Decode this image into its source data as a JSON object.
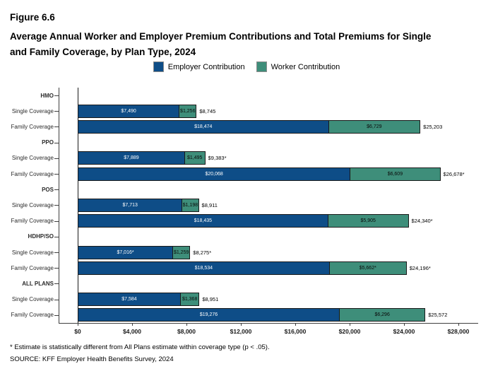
{
  "figure_label": "Figure 6.6",
  "title_lines": [
    "Average Annual Worker and Employer Premium Contributions and Total Premiums for Single",
    "and Family Coverage, by Plan Type, 2024"
  ],
  "legend": {
    "employer": {
      "label": "Employer Contribution",
      "color": "#0E4D87"
    },
    "worker": {
      "label": "Worker Contribution",
      "color": "#3E8E7A"
    }
  },
  "footnote": "* Estimate is statistically different from All Plans estimate within coverage type (p < .05).",
  "source": "SOURCE: KFF Employer Health Benefits Survey, 2024",
  "chart_data": {
    "type": "bar",
    "orientation": "horizontal",
    "stacked": true,
    "xlim": [
      0,
      28000
    ],
    "grid": false,
    "legend_position": "top",
    "series": [
      {
        "name": "Employer Contribution",
        "color": "#0E4D87"
      },
      {
        "name": "Worker Contribution",
        "color": "#3E8E7A"
      }
    ],
    "x_ticks": [
      {
        "label": "$0",
        "value": 0
      },
      {
        "label": "$4,000",
        "value": 4000
      },
      {
        "label": "$8,000",
        "value": 8000
      },
      {
        "label": "$12,000",
        "value": 12000
      },
      {
        "label": "$16,000",
        "value": 16000
      },
      {
        "label": "$20,000",
        "value": 20000
      },
      {
        "label": "$24,000",
        "value": 24000
      },
      {
        "label": "$28,000",
        "value": 28000
      }
    ],
    "groups": [
      {
        "label": "HMO",
        "rows": [
          {
            "label": "Single Coverage",
            "employer": 7490,
            "worker": 1256,
            "employer_label": "$7,490",
            "worker_label": "$1,256",
            "total_label": "$8,745"
          },
          {
            "label": "Family Coverage",
            "employer": 18474,
            "worker": 6729,
            "employer_label": "$18,474",
            "worker_label": "$6,729",
            "total_label": "$25,203"
          }
        ]
      },
      {
        "label": "PPO",
        "rows": [
          {
            "label": "Single Coverage",
            "employer": 7889,
            "worker": 1495,
            "employer_label": "$7,889",
            "worker_label": "$1,495",
            "total_label": "$9,383*"
          },
          {
            "label": "Family Coverage",
            "employer": 20068,
            "worker": 6609,
            "employer_label": "$20,068",
            "worker_label": "$6,609",
            "total_label": "$26,678*"
          }
        ]
      },
      {
        "label": "POS",
        "rows": [
          {
            "label": "Single Coverage",
            "employer": 7713,
            "worker": 1198,
            "employer_label": "$7,713",
            "worker_label": "$1,198",
            "total_label": "$8,911"
          },
          {
            "label": "Family Coverage",
            "employer": 18435,
            "worker": 5905,
            "employer_label": "$18,435",
            "worker_label": "$5,905",
            "total_label": "$24,340*"
          }
        ]
      },
      {
        "label": "HDHP/SO",
        "rows": [
          {
            "label": "Single Coverage",
            "employer": 7016,
            "worker": 1259,
            "employer_label": "$7,016*",
            "worker_label": "$1,259",
            "total_label": "$8,275*"
          },
          {
            "label": "Family Coverage",
            "employer": 18534,
            "worker": 5662,
            "employer_label": "$18,534",
            "worker_label": "$5,662*",
            "total_label": "$24,196*"
          }
        ]
      },
      {
        "label": "ALL PLANS",
        "rows": [
          {
            "label": "Single Coverage",
            "employer": 7584,
            "worker": 1368,
            "employer_label": "$7,584",
            "worker_label": "$1,368",
            "total_label": "$8,951"
          },
          {
            "label": "Family Coverage",
            "employer": 19276,
            "worker": 6296,
            "employer_label": "$19,276",
            "worker_label": "$6,296",
            "total_label": "$25,572"
          }
        ]
      }
    ]
  }
}
